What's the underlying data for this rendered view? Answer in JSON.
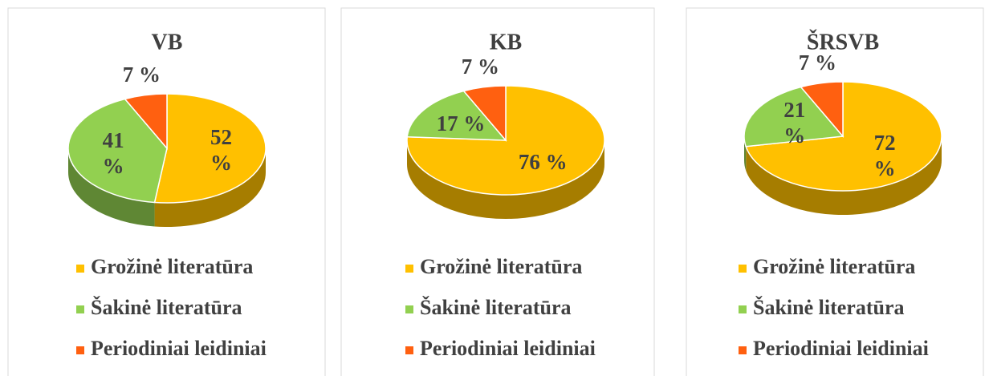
{
  "chart_data": [
    {
      "type": "pie",
      "title": "VB",
      "categories": [
        "Grožinė literatūra",
        "Šakinė literatūra",
        "Periodiniai leidiniai"
      ],
      "values": [
        52,
        41,
        7
      ],
      "value_labels": [
        "52 %",
        "41 %",
        "7 %"
      ],
      "colors": [
        "#FFC000",
        "#92D050",
        "#FF6010"
      ]
    },
    {
      "type": "pie",
      "title": "KB",
      "categories": [
        "Grožinė literatūra",
        "Šakinė literatūra",
        "Periodiniai leidiniai"
      ],
      "values": [
        76,
        17,
        7
      ],
      "value_labels": [
        "76 %",
        "17 %",
        "7 %"
      ],
      "colors": [
        "#FFC000",
        "#92D050",
        "#FF6010"
      ]
    },
    {
      "type": "pie",
      "title": "ŠRSVB",
      "categories": [
        "Grožinė literatūra",
        "Šakinė literatūra",
        "Periodiniai leidiniai"
      ],
      "values": [
        72,
        21,
        7
      ],
      "value_labels": [
        "72 %",
        "21 %",
        "7 %"
      ],
      "colors": [
        "#FFC000",
        "#92D050",
        "#FF6010"
      ]
    }
  ]
}
